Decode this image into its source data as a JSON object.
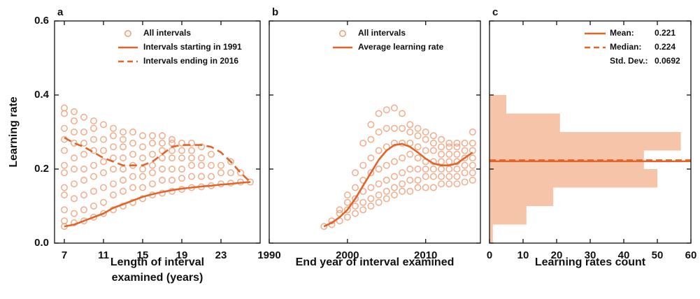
{
  "chart_data": [
    {
      "type": "scatter",
      "panel_label": "a",
      "ylabel": "Learning rate",
      "xlabel": [
        "Length of interval",
        "examined (years)"
      ],
      "xlim": [
        6,
        27
      ],
      "xticks": [
        7,
        11,
        15,
        19,
        23
      ],
      "ylim": [
        0,
        0.6
      ],
      "yticks": [
        {
          "value": 0,
          "label": "0.0"
        },
        0.2,
        0.4,
        0.6
      ],
      "ytick_labels": true,
      "series": [
        {
          "name": "All intervals",
          "type": "scatter",
          "color": "#f0a27c",
          "x": [
            7,
            7,
            7,
            7,
            7,
            7,
            7,
            7,
            7,
            7,
            7,
            7,
            8,
            8,
            8,
            8,
            8,
            8,
            8,
            8,
            8,
            8,
            9,
            9,
            9,
            9,
            9,
            9,
            9,
            9,
            9,
            10,
            10,
            10,
            10,
            10,
            10,
            10,
            10,
            10,
            11,
            11,
            11,
            11,
            11,
            11,
            11,
            11,
            12,
            12,
            12,
            12,
            12,
            12,
            12,
            12,
            13,
            13,
            13,
            13,
            13,
            13,
            13,
            13,
            14,
            14,
            14,
            14,
            14,
            14,
            14,
            15,
            15,
            15,
            15,
            15,
            15,
            15,
            16,
            16,
            16,
            16,
            16,
            16,
            16,
            17,
            17,
            17,
            17,
            17,
            17,
            17,
            18,
            18,
            18,
            18,
            18,
            18,
            18,
            19,
            19,
            19,
            19,
            19,
            19,
            20,
            20,
            20,
            20,
            20,
            20,
            21,
            21,
            21,
            21,
            21,
            22,
            22,
            22,
            22,
            23,
            23,
            23,
            24,
            24,
            24,
            25,
            25,
            26
          ],
          "values": [
            0.045,
            0.06,
            0.09,
            0.13,
            0.15,
            0.19,
            0.21,
            0.25,
            0.28,
            0.31,
            0.35,
            0.365,
            0.055,
            0.08,
            0.12,
            0.16,
            0.2,
            0.23,
            0.27,
            0.3,
            0.33,
            0.355,
            0.06,
            0.09,
            0.13,
            0.17,
            0.2,
            0.24,
            0.27,
            0.3,
            0.34,
            0.07,
            0.1,
            0.14,
            0.18,
            0.21,
            0.25,
            0.28,
            0.31,
            0.33,
            0.08,
            0.11,
            0.15,
            0.19,
            0.22,
            0.25,
            0.28,
            0.32,
            0.09,
            0.13,
            0.16,
            0.2,
            0.23,
            0.26,
            0.29,
            0.31,
            0.1,
            0.14,
            0.17,
            0.2,
            0.23,
            0.26,
            0.28,
            0.3,
            0.11,
            0.15,
            0.18,
            0.21,
            0.24,
            0.27,
            0.3,
            0.12,
            0.15,
            0.18,
            0.2,
            0.23,
            0.26,
            0.29,
            0.13,
            0.16,
            0.19,
            0.21,
            0.24,
            0.27,
            0.29,
            0.135,
            0.17,
            0.2,
            0.23,
            0.25,
            0.27,
            0.29,
            0.14,
            0.17,
            0.2,
            0.23,
            0.25,
            0.27,
            0.28,
            0.145,
            0.175,
            0.2,
            0.23,
            0.25,
            0.27,
            0.15,
            0.18,
            0.21,
            0.23,
            0.25,
            0.27,
            0.152,
            0.18,
            0.21,
            0.23,
            0.26,
            0.155,
            0.18,
            0.21,
            0.24,
            0.16,
            0.19,
            0.21,
            0.162,
            0.19,
            0.22,
            0.165,
            0.19,
            0.165
          ]
        },
        {
          "name": "Intervals starting in 1991",
          "type": "line",
          "dash": false,
          "color": "#e0652a",
          "x": [
            7,
            8,
            9,
            10,
            11,
            12,
            13,
            14,
            15,
            16,
            17,
            18,
            19,
            20,
            21,
            22,
            23,
            24,
            25,
            26
          ],
          "values": [
            0.045,
            0.05,
            0.06,
            0.07,
            0.08,
            0.095,
            0.105,
            0.115,
            0.125,
            0.132,
            0.138,
            0.143,
            0.147,
            0.15,
            0.153,
            0.155,
            0.158,
            0.16,
            0.163,
            0.165
          ]
        },
        {
          "name": "Intervals ending in 2016",
          "type": "line",
          "dash": true,
          "color": "#e0652a",
          "x": [
            7,
            8,
            9,
            10,
            11,
            12,
            13,
            14,
            15,
            16,
            17,
            18,
            19,
            20,
            21,
            22,
            23,
            24,
            25,
            26
          ],
          "values": [
            0.285,
            0.27,
            0.26,
            0.245,
            0.23,
            0.22,
            0.21,
            0.21,
            0.21,
            0.22,
            0.24,
            0.26,
            0.265,
            0.265,
            0.265,
            0.26,
            0.245,
            0.22,
            0.19,
            0.165
          ]
        }
      ]
    },
    {
      "type": "scatter",
      "panel_label": "b",
      "xlabel": "End year of interval examined",
      "xlim": [
        1990,
        2017
      ],
      "xticks": [
        1990,
        2000,
        2010
      ],
      "ylim": [
        0,
        0.6
      ],
      "yticks": [
        0,
        0.2,
        0.4,
        0.6
      ],
      "ytick_labels": false,
      "series": [
        {
          "name": "All intervals",
          "type": "scatter",
          "color": "#f0a27c",
          "x": [
            1997,
            1998,
            1998,
            1999,
            1999,
            1999,
            2000,
            2000,
            2000,
            2000,
            2001,
            2001,
            2001,
            2001,
            2001,
            2002,
            2002,
            2002,
            2002,
            2002,
            2002,
            2003,
            2003,
            2003,
            2003,
            2003,
            2003,
            2003,
            2004,
            2004,
            2004,
            2004,
            2004,
            2004,
            2004,
            2005,
            2005,
            2005,
            2005,
            2005,
            2005,
            2005,
            2006,
            2006,
            2006,
            2006,
            2006,
            2006,
            2006,
            2007,
            2007,
            2007,
            2007,
            2007,
            2007,
            2007,
            2008,
            2008,
            2008,
            2008,
            2008,
            2008,
            2008,
            2009,
            2009,
            2009,
            2009,
            2009,
            2009,
            2009,
            2010,
            2010,
            2010,
            2010,
            2010,
            2010,
            2010,
            2011,
            2011,
            2011,
            2011,
            2011,
            2011,
            2011,
            2012,
            2012,
            2012,
            2012,
            2012,
            2012,
            2012,
            2013,
            2013,
            2013,
            2013,
            2013,
            2013,
            2013,
            2014,
            2014,
            2014,
            2014,
            2014,
            2014,
            2014,
            2015,
            2015,
            2015,
            2015,
            2015,
            2015,
            2016,
            2016,
            2016,
            2016,
            2016,
            2016,
            2016
          ],
          "values": [
            0.045,
            0.05,
            0.06,
            0.06,
            0.08,
            0.09,
            0.07,
            0.09,
            0.11,
            0.13,
            0.08,
            0.1,
            0.12,
            0.15,
            0.19,
            0.09,
            0.11,
            0.14,
            0.17,
            0.21,
            0.27,
            0.1,
            0.12,
            0.15,
            0.19,
            0.23,
            0.28,
            0.32,
            0.11,
            0.13,
            0.16,
            0.2,
            0.25,
            0.3,
            0.35,
            0.12,
            0.14,
            0.17,
            0.21,
            0.26,
            0.31,
            0.36,
            0.13,
            0.15,
            0.18,
            0.22,
            0.27,
            0.31,
            0.365,
            0.14,
            0.16,
            0.19,
            0.23,
            0.27,
            0.31,
            0.35,
            0.14,
            0.17,
            0.2,
            0.24,
            0.27,
            0.3,
            0.32,
            0.15,
            0.17,
            0.2,
            0.23,
            0.26,
            0.29,
            0.31,
            0.15,
            0.18,
            0.2,
            0.22,
            0.25,
            0.28,
            0.3,
            0.15,
            0.18,
            0.2,
            0.22,
            0.25,
            0.27,
            0.29,
            0.16,
            0.18,
            0.2,
            0.22,
            0.24,
            0.26,
            0.28,
            0.16,
            0.18,
            0.2,
            0.22,
            0.24,
            0.26,
            0.27,
            0.16,
            0.18,
            0.2,
            0.22,
            0.24,
            0.26,
            0.27,
            0.165,
            0.19,
            0.21,
            0.23,
            0.25,
            0.27,
            0.17,
            0.19,
            0.21,
            0.23,
            0.25,
            0.27,
            0.3
          ]
        },
        {
          "name": "Average learning rate",
          "type": "line",
          "dash": false,
          "color": "#e0652a",
          "x": [
            1997,
            1998,
            1999,
            2000,
            2001,
            2002,
            2003,
            2004,
            2005,
            2006,
            2007,
            2008,
            2009,
            2010,
            2011,
            2012,
            2013,
            2014,
            2015,
            2016
          ],
          "values": [
            0.045,
            0.055,
            0.07,
            0.09,
            0.12,
            0.155,
            0.19,
            0.225,
            0.25,
            0.265,
            0.268,
            0.26,
            0.245,
            0.228,
            0.215,
            0.21,
            0.21,
            0.215,
            0.23,
            0.245
          ]
        }
      ]
    },
    {
      "type": "histogram",
      "panel_label": "c",
      "xlabel": "Learning rates count",
      "orientation": "horizontal",
      "color": "#f6c4a8",
      "xlim": [
        0,
        60
      ],
      "xticks": [
        0,
        10,
        20,
        30,
        40,
        50,
        60
      ],
      "ylim": [
        0,
        0.6
      ],
      "yticks": [
        0,
        0.2,
        0.4,
        0.6
      ],
      "ytick_labels": false,
      "bins": [
        0,
        0.05,
        0.1,
        0.15,
        0.2,
        0.25,
        0.3,
        0.35,
        0.4
      ],
      "counts": [
        1,
        11,
        19,
        50,
        46,
        57,
        21,
        5
      ],
      "stats": [
        {
          "name": "Mean:",
          "value": 0.221,
          "line": "solid",
          "color": "#e0652a"
        },
        {
          "name": "Median:",
          "value": 0.224,
          "line": "dashed",
          "color": "#e0652a"
        },
        {
          "name": "Std. Dev.:",
          "value": 0.0692
        }
      ]
    }
  ]
}
